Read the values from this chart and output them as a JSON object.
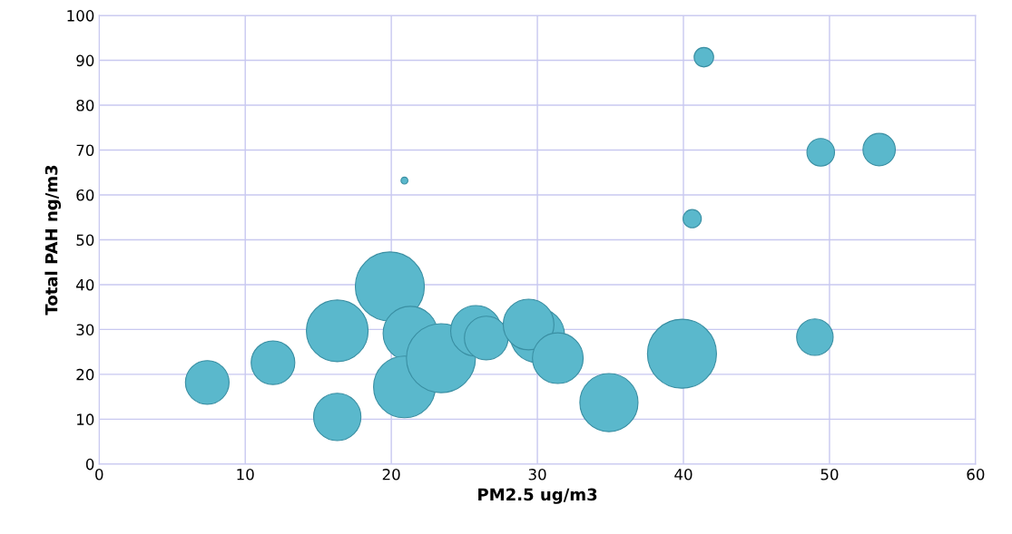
{
  "chart_data": {
    "type": "bubble",
    "xlabel": "PM2.5 ug/m3",
    "ylabel": "Total PAH ng/m3",
    "xlim": [
      0,
      60
    ],
    "xticks": [
      0,
      10,
      20,
      30,
      40,
      50,
      60
    ],
    "ylim": [
      0,
      100
    ],
    "yticks": [
      0,
      10,
      20,
      30,
      40,
      50,
      60,
      70,
      80,
      90,
      100
    ],
    "grid": true,
    "series": [
      {
        "color": "#5ab8cc",
        "x": [
          7.4,
          11.9,
          16.3,
          16.3,
          19.9,
          20.9,
          21.3,
          20.9,
          23.4,
          25.8,
          26.5,
          30.0,
          29.4,
          31.4,
          34.9,
          39.9,
          40.6,
          41.4,
          49.0,
          49.4,
          53.4
        ],
        "values": [
          18.2,
          22.6,
          10.5,
          29.7,
          39.6,
          63.2,
          29.1,
          17.2,
          23.6,
          29.7,
          28.1,
          28.7,
          31.1,
          23.6,
          13.7,
          24.6,
          54.7,
          90.7,
          28.3,
          69.5,
          70.1
        ],
        "sizes": [
          0.4,
          0.4,
          0.47,
          0.8,
          1,
          0.01,
          0.62,
          0.8,
          1,
          0.54,
          0.4,
          0.62,
          0.54,
          0.54,
          0.71,
          1,
          0.07,
          0.08,
          0.28,
          0.16,
          0.22
        ]
      }
    ]
  }
}
